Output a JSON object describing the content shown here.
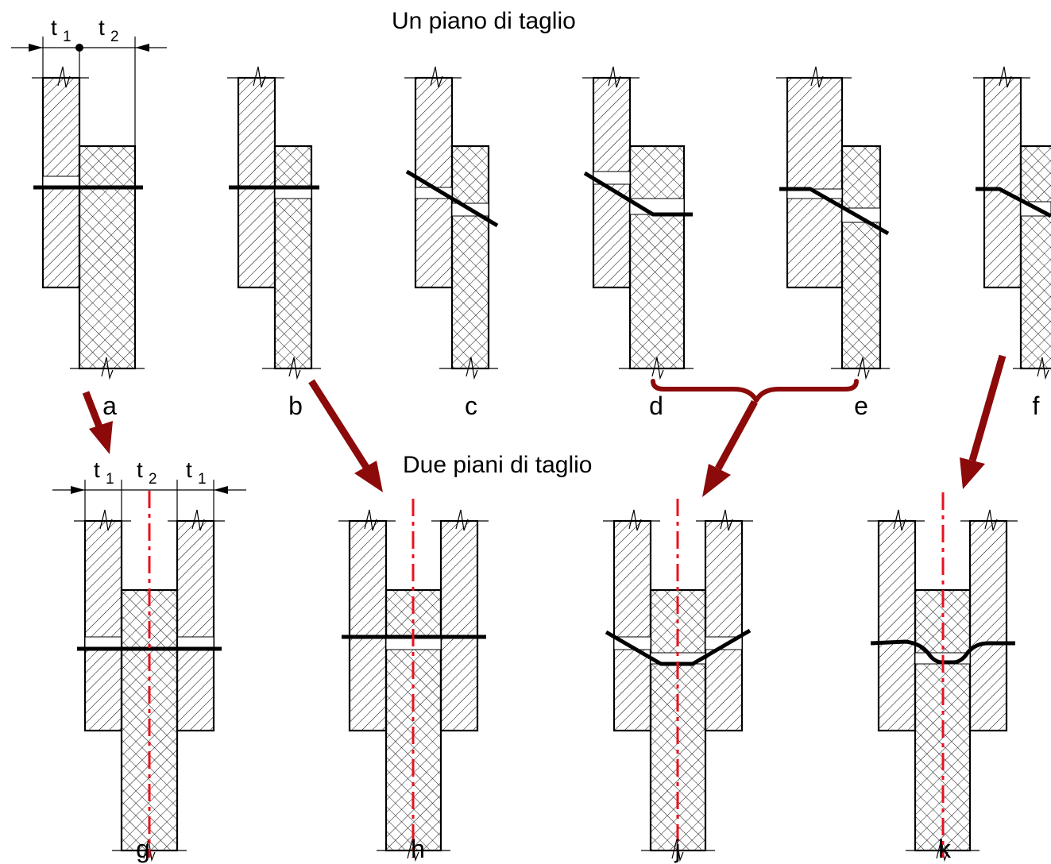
{
  "titles": {
    "single_shear": "Un piano di taglio",
    "double_shear": "Due piani di taglio"
  },
  "dimensions": {
    "t1": "t",
    "t1_sub": "1",
    "t2": "t",
    "t2_sub": "2"
  },
  "cases": {
    "a": "a",
    "b": "b",
    "c": "c",
    "d": "d",
    "e": "e",
    "f": "f",
    "g": "g",
    "h": "h",
    "j": "j",
    "k": "k"
  },
  "colors": {
    "arrow": "#8c0a0a",
    "axis": "#e8121e",
    "lines": "#000000"
  }
}
